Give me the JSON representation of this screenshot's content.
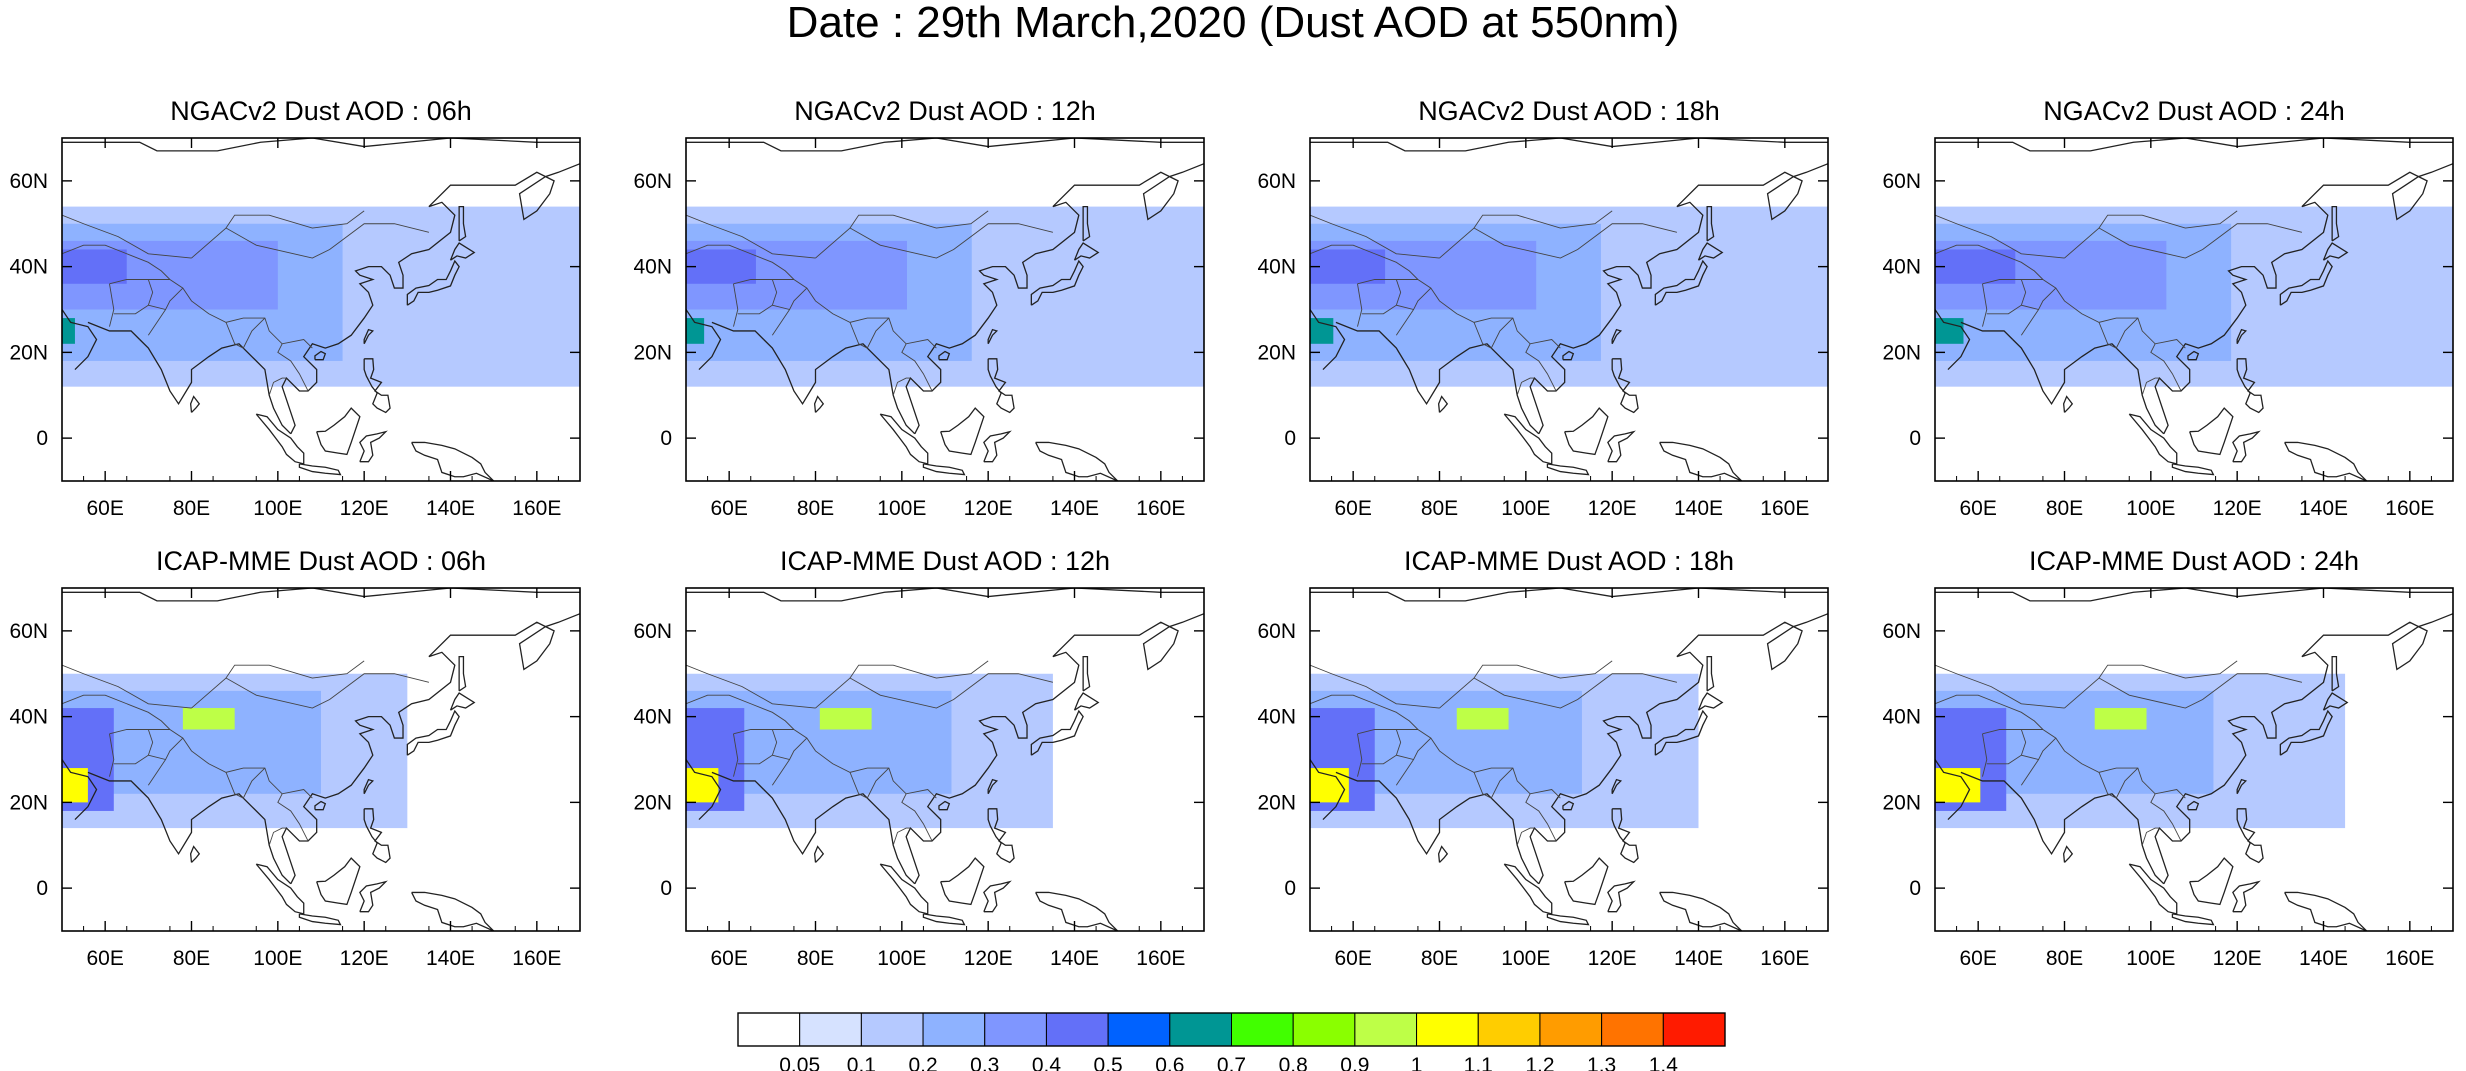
{
  "title": "Date : 29th March,2020 (Dust AOD at 550nm)",
  "panels": [
    {
      "id": "ngac-06",
      "title": "NGACv2 Dust AOD : 06h"
    },
    {
      "id": "ngac-12",
      "title": "NGACv2 Dust AOD : 12h"
    },
    {
      "id": "ngac-18",
      "title": "NGACv2 Dust AOD : 18h"
    },
    {
      "id": "ngac-24",
      "title": "NGACv2 Dust AOD : 24h"
    },
    {
      "id": "icap-06",
      "title": "ICAP-MME Dust AOD : 06h"
    },
    {
      "id": "icap-12",
      "title": "ICAP-MME Dust AOD : 12h"
    },
    {
      "id": "icap-18",
      "title": "ICAP-MME Dust AOD : 18h"
    },
    {
      "id": "icap-24",
      "title": "ICAP-MME Dust AOD : 24h"
    }
  ],
  "map": {
    "lon_range": [
      50,
      170
    ],
    "lat_range": [
      -10,
      70
    ],
    "lon_ticks": [
      60,
      80,
      100,
      120,
      140,
      160
    ],
    "lon_tick_labels": [
      "60E",
      "80E",
      "100E",
      "120E",
      "140E",
      "160E"
    ],
    "lat_ticks": [
      0,
      20,
      40,
      60
    ],
    "lat_tick_labels": [
      "0",
      "20N",
      "40N",
      "60N"
    ]
  },
  "colorbar": {
    "colors": [
      "#ffffff",
      "#d6e2ff",
      "#b5c9ff",
      "#8eb2ff",
      "#7f96ff",
      "#6370f8",
      "#0062ff",
      "#009694",
      "#41ff00",
      "#8aff00",
      "#beff47",
      "#ffff00",
      "#ffcd00",
      "#ff9c00",
      "#ff7300",
      "#ff1b00"
    ],
    "labels": [
      "0.05",
      "0.1",
      "0.2",
      "0.3",
      "0.4",
      "0.5",
      "0.6",
      "0.7",
      "0.8",
      "0.9",
      "1",
      "1.1",
      "1.2",
      "1.3",
      "1.4"
    ]
  },
  "chart_data": {
    "type": "heatmap",
    "title": "Date : 29th March,2020 (Dust AOD at 550nm)",
    "variable": "Dust AOD at 550nm",
    "date": "29th March,2020",
    "models": [
      "NGACv2",
      "ICAP-MME"
    ],
    "forecast_hours": [
      "06h",
      "12h",
      "18h",
      "24h"
    ],
    "lon_range": [
      50,
      170
    ],
    "lat_range": [
      -10,
      70
    ],
    "levels": [
      0.05,
      0.1,
      0.2,
      0.3,
      0.4,
      0.5,
      0.6,
      0.7,
      0.8,
      0.9,
      1,
      1.1,
      1.2,
      1.3,
      1.4
    ],
    "fields": {
      "NGACv2": {
        "base": [
          {
            "lon": [
              50,
              170
            ],
            "lat": [
              12,
              54
            ],
            "value": 0.1
          },
          {
            "lon": [
              50,
              115
            ],
            "lat": [
              18,
              50
            ],
            "value": 0.2
          },
          {
            "lon": [
              50,
              100
            ],
            "lat": [
              30,
              46
            ],
            "value": 0.3
          },
          {
            "lon": [
              50,
              65
            ],
            "lat": [
              36,
              44
            ],
            "value": 0.4
          },
          {
            "lon": [
              50,
              53
            ],
            "lat": [
              22,
              28
            ],
            "value": 0.6
          }
        ],
        "eastward_drift_deg_per_6h": 4
      },
      "ICAP-MME": {
        "base": [
          {
            "lon": [
              50,
              130
            ],
            "lat": [
              14,
              50
            ],
            "value": 0.1
          },
          {
            "lon": [
              50,
              110
            ],
            "lat": [
              22,
              46
            ],
            "value": 0.2
          },
          {
            "lon": [
              50,
              62
            ],
            "lat": [
              18,
              42
            ],
            "value": 0.4
          },
          {
            "lon": [
              50,
              56
            ],
            "lat": [
              20,
              28
            ],
            "value": 1.0
          },
          {
            "lon": [
              78,
              90
            ],
            "lat": [
              37,
              42
            ],
            "value": 0.9
          }
        ],
        "eastward_drift_deg_per_6h": 5
      }
    }
  }
}
